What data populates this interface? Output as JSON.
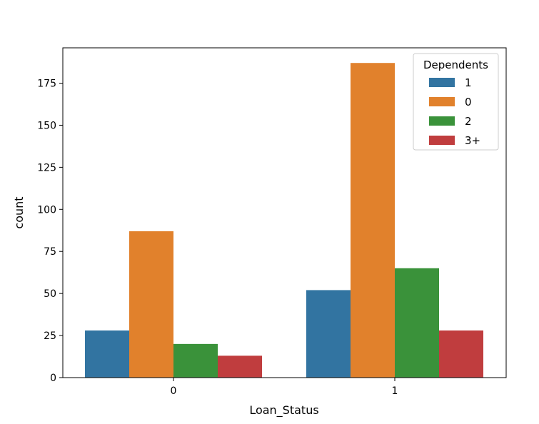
{
  "chart_data": {
    "type": "bar",
    "title": "",
    "xlabel": "Loan_Status",
    "ylabel": "count",
    "categories": [
      "0",
      "1"
    ],
    "ylim": [
      0,
      196
    ],
    "yticks": [
      0,
      25,
      50,
      75,
      100,
      125,
      150,
      175
    ],
    "grid": false,
    "legend": {
      "title": "Dependents",
      "placement": "top-right"
    },
    "series": [
      {
        "name": "1",
        "color": "#3274a1",
        "values": [
          28,
          52
        ]
      },
      {
        "name": "0",
        "color": "#e1812c",
        "values": [
          87,
          187
        ]
      },
      {
        "name": "2",
        "color": "#3a923a",
        "values": [
          20,
          65
        ]
      },
      {
        "name": "3+",
        "color": "#c03d3e",
        "values": [
          13,
          28
        ]
      }
    ]
  }
}
